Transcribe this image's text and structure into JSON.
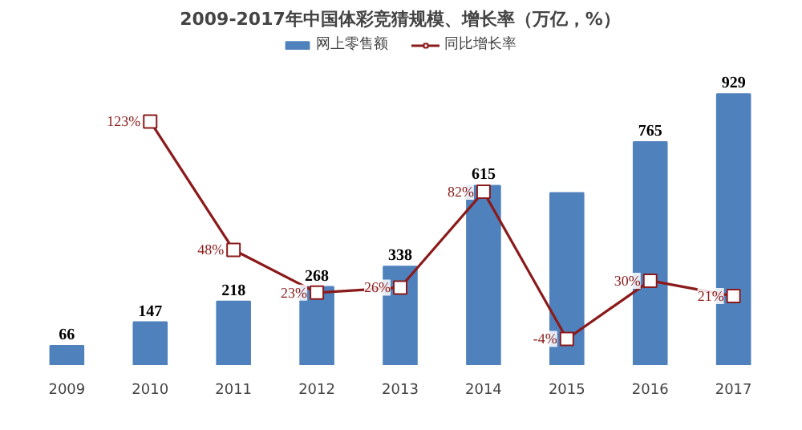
{
  "chart_data": {
    "type": "bar",
    "title": "2009-2017年中国体彩竞猜规模、增长率（万亿，%）",
    "categories": [
      "2009",
      "2010",
      "2011",
      "2012",
      "2013",
      "2014",
      "2015",
      "2016",
      "2017"
    ],
    "series": [
      {
        "name": "网上零售额",
        "color": "#4f81bd",
        "values": [
          66,
          147,
          218,
          268,
          338,
          615,
          590,
          765,
          929
        ],
        "value_labels": [
          "66",
          "147",
          "218",
          "268",
          "338",
          "615",
          null,
          "765",
          "929"
        ]
      },
      {
        "name": "同比增长率",
        "type": "line",
        "axis": "y2",
        "color": "#8b1a1a",
        "marker": "square",
        "values": [
          null,
          123,
          48,
          23,
          26,
          82,
          -4,
          30,
          21
        ],
        "value_labels": [
          null,
          "123%",
          "48%",
          "23%",
          "26%",
          "82%",
          "-4%",
          "30%",
          "21%"
        ]
      }
    ],
    "tick_labels": "x",
    "grid": false,
    "legend": "top"
  }
}
